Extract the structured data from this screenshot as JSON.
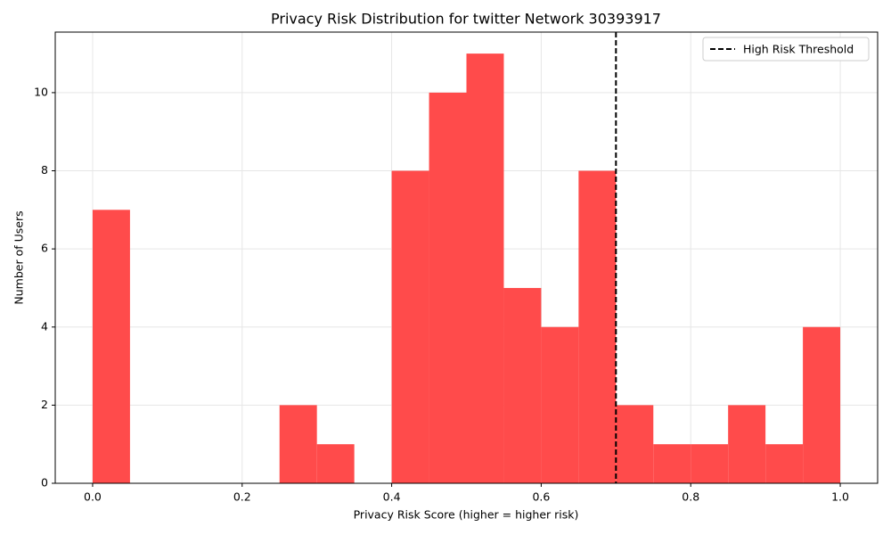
{
  "chart_data": {
    "type": "histogram",
    "title": "Privacy Risk Distribution for twitter Network 30393917",
    "xlabel": "Privacy Risk Score (higher = higher risk)",
    "ylabel": "Number of Users",
    "bins": [
      0,
      0.05,
      0.1,
      0.15,
      0.2,
      0.25,
      0.3,
      0.35,
      0.4,
      0.45,
      0.5,
      0.55,
      0.6,
      0.65,
      0.7,
      0.75,
      0.8,
      0.85,
      0.9,
      0.95,
      1.0
    ],
    "counts": [
      7,
      0,
      0,
      0,
      0,
      2,
      1,
      0,
      8,
      10,
      11,
      5,
      4,
      8,
      2,
      1,
      1,
      2,
      1,
      4
    ],
    "color": "#ff4b4b",
    "threshold": {
      "value": 0.7,
      "label": "High Risk Threshold",
      "color": "#000000"
    },
    "xlim": [
      -0.05,
      1.05
    ],
    "ylim": [
      0,
      11.55
    ],
    "xticks": [
      {
        "value": 0,
        "label": "0.0"
      },
      0.2,
      0.4,
      0.6,
      0.8,
      {
        "value": 1,
        "label": "1.0"
      }
    ],
    "yticks": [
      0,
      2,
      4,
      6,
      8,
      10
    ],
    "grid": true,
    "legend": "upper right"
  }
}
